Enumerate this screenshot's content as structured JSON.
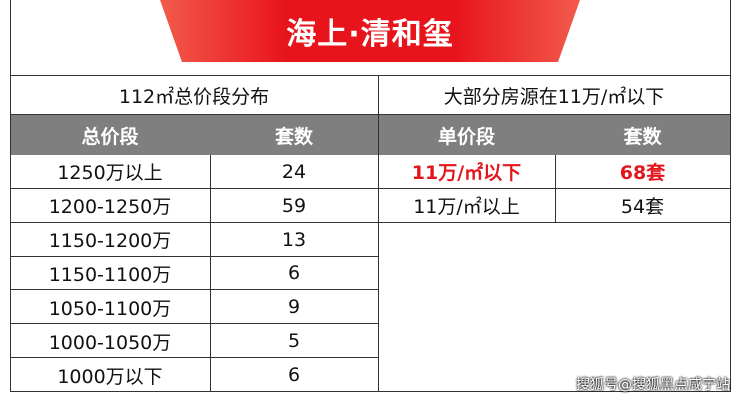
{
  "header": {
    "title": "海上·清和玺"
  },
  "left_table": {
    "title": "112㎡总价段分布",
    "columns": [
      "总价段",
      "套数"
    ],
    "rows": [
      [
        "1250万以上",
        24
      ],
      [
        "1200-1250万",
        59
      ],
      [
        "1150-1200万",
        13
      ],
      [
        "1150-1100万",
        6
      ],
      [
        "1050-1100万",
        9
      ],
      [
        "1000-1050万",
        5
      ],
      [
        "1000万以下",
        6
      ]
    ]
  },
  "right_table": {
    "title": "大部分房源在11万/㎡以下",
    "columns": [
      "单价段",
      "套数"
    ],
    "rows": [
      [
        "11万/㎡以下",
        "68套"
      ],
      [
        "11万/㎡以上",
        "54套"
      ]
    ]
  },
  "watermark": "搜狐号@搜狐黑点咸宁站"
}
